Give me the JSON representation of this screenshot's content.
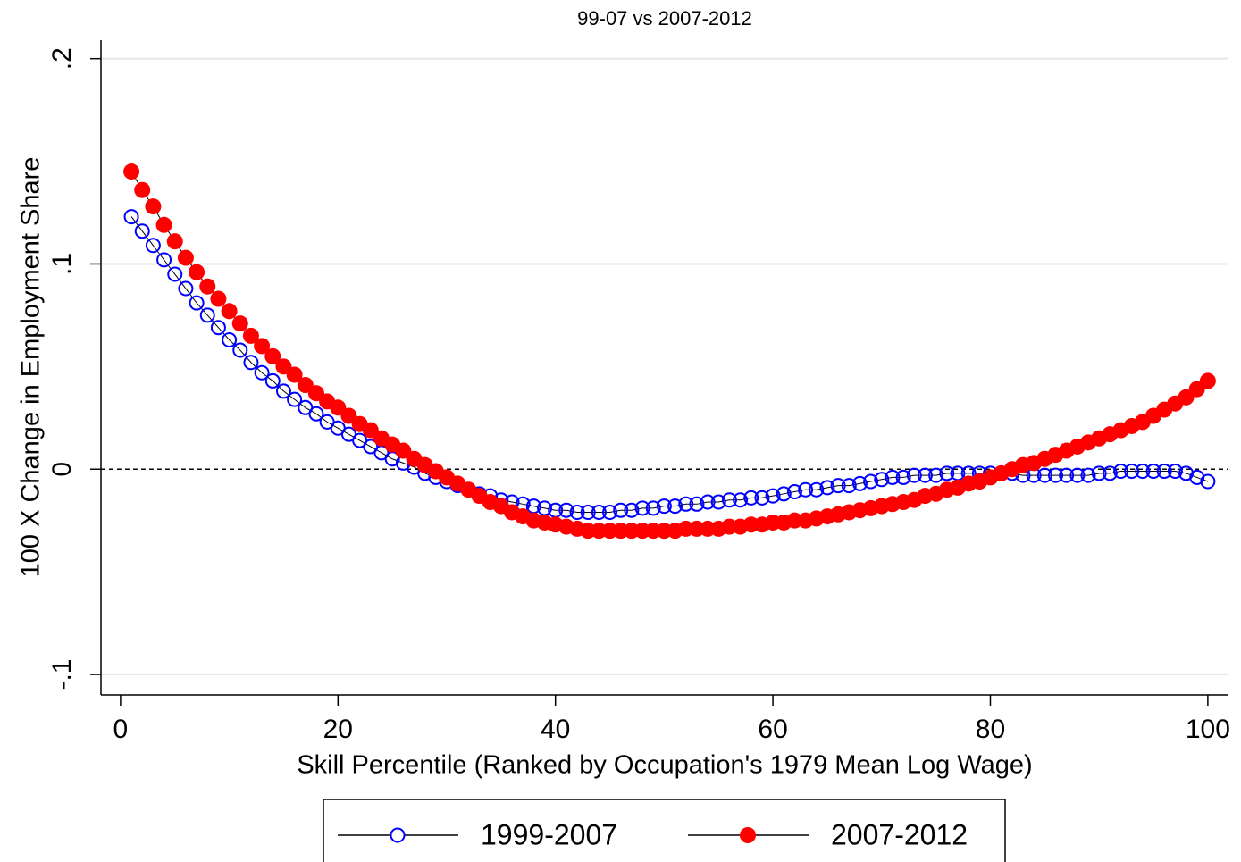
{
  "chart_data": {
    "type": "line",
    "title": "99-07 vs 2007-2012",
    "xlabel": "Skill Percentile (Ranked by Occupation's 1979 Mean Log Wage)",
    "ylabel": "100 X Change in Employment Share",
    "x": [
      1,
      2,
      3,
      4,
      5,
      6,
      7,
      8,
      9,
      10,
      11,
      12,
      13,
      14,
      15,
      16,
      17,
      18,
      19,
      20,
      21,
      22,
      23,
      24,
      25,
      26,
      27,
      28,
      29,
      30,
      31,
      32,
      33,
      34,
      35,
      36,
      37,
      38,
      39,
      40,
      41,
      42,
      43,
      44,
      45,
      46,
      47,
      48,
      49,
      50,
      51,
      52,
      53,
      54,
      55,
      56,
      57,
      58,
      59,
      60,
      61,
      62,
      63,
      64,
      65,
      66,
      67,
      68,
      69,
      70,
      71,
      72,
      73,
      74,
      75,
      76,
      77,
      78,
      79,
      80,
      81,
      82,
      83,
      84,
      85,
      86,
      87,
      88,
      89,
      90,
      91,
      92,
      93,
      94,
      95,
      96,
      97,
      98,
      99,
      100
    ],
    "series": [
      {
        "name": "1999-2007",
        "color": "#0000ff",
        "marker": "hollow",
        "values": [
          0.123,
          0.116,
          0.109,
          0.102,
          0.095,
          0.088,
          0.081,
          0.075,
          0.069,
          0.063,
          0.058,
          0.052,
          0.047,
          0.043,
          0.038,
          0.034,
          0.03,
          0.027,
          0.023,
          0.02,
          0.017,
          0.014,
          0.011,
          0.008,
          0.005,
          0.003,
          0.001,
          -0.002,
          -0.004,
          -0.006,
          -0.008,
          -0.01,
          -0.012,
          -0.013,
          -0.015,
          -0.016,
          -0.017,
          -0.018,
          -0.019,
          -0.02,
          -0.02,
          -0.021,
          -0.021,
          -0.021,
          -0.021,
          -0.02,
          -0.02,
          -0.019,
          -0.019,
          -0.018,
          -0.018,
          -0.017,
          -0.017,
          -0.016,
          -0.016,
          -0.015,
          -0.015,
          -0.014,
          -0.014,
          -0.013,
          -0.012,
          -0.011,
          -0.01,
          -0.01,
          -0.009,
          -0.008,
          -0.008,
          -0.007,
          -0.006,
          -0.005,
          -0.004,
          -0.004,
          -0.003,
          -0.003,
          -0.003,
          -0.002,
          -0.002,
          -0.002,
          -0.002,
          -0.002,
          -0.002,
          -0.002,
          -0.003,
          -0.003,
          -0.003,
          -0.003,
          -0.003,
          -0.003,
          -0.003,
          -0.002,
          -0.002,
          -0.001,
          -0.001,
          -0.001,
          -0.001,
          -0.001,
          -0.001,
          -0.002,
          -0.004,
          -0.006
        ]
      },
      {
        "name": "2007-2012",
        "color": "#ff0000",
        "marker": "filled",
        "values": [
          0.145,
          0.136,
          0.128,
          0.119,
          0.111,
          0.103,
          0.096,
          0.089,
          0.083,
          0.077,
          0.071,
          0.065,
          0.06,
          0.055,
          0.05,
          0.046,
          0.041,
          0.037,
          0.033,
          0.03,
          0.026,
          0.022,
          0.019,
          0.015,
          0.012,
          0.009,
          0.005,
          0.002,
          -0.001,
          -0.004,
          -0.007,
          -0.01,
          -0.013,
          -0.016,
          -0.018,
          -0.021,
          -0.023,
          -0.025,
          -0.026,
          -0.027,
          -0.028,
          -0.029,
          -0.03,
          -0.03,
          -0.03,
          -0.03,
          -0.03,
          -0.03,
          -0.03,
          -0.03,
          -0.03,
          -0.029,
          -0.029,
          -0.029,
          -0.029,
          -0.028,
          -0.028,
          -0.027,
          -0.027,
          -0.026,
          -0.026,
          -0.025,
          -0.025,
          -0.024,
          -0.023,
          -0.022,
          -0.021,
          -0.02,
          -0.019,
          -0.018,
          -0.017,
          -0.016,
          -0.015,
          -0.013,
          -0.012,
          -0.01,
          -0.009,
          -0.007,
          -0.006,
          -0.004,
          -0.002,
          0,
          0.002,
          0.003,
          0.005,
          0.007,
          0.009,
          0.011,
          0.013,
          0.015,
          0.017,
          0.019,
          0.021,
          0.023,
          0.026,
          0.029,
          0.032,
          0.035,
          0.039,
          0.043
        ]
      }
    ],
    "line_color": "#000000",
    "xlim": [
      -1.8,
      101.9
    ],
    "ylim": [
      -0.11,
      0.209
    ],
    "xticks": [
      0,
      20,
      40,
      60,
      80,
      100
    ],
    "yticks": [
      {
        "value": -0.1,
        "label": "-.1"
      },
      0,
      {
        "value": 0.1,
        "label": ".1"
      },
      {
        "value": 0.2,
        "label": ".2"
      }
    ],
    "reference_line": 0,
    "grid": true,
    "legend": "bottom"
  }
}
